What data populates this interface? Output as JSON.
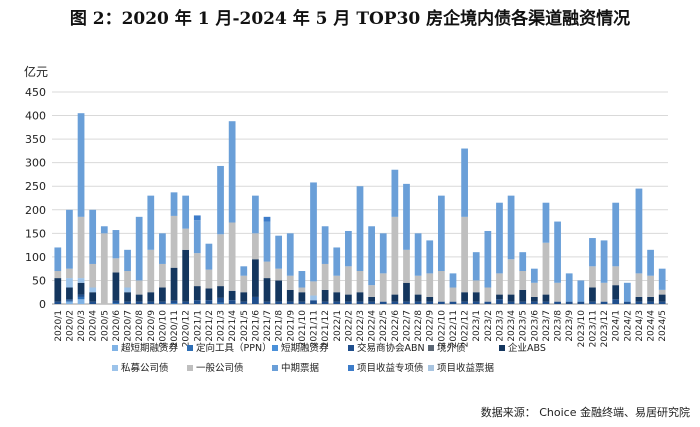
{
  "chart_data": {
    "type": "bar",
    "stacked": true,
    "title": "图 2：2020 年 1 月-2024 年 5 月 TOP30 房企境内债各渠道融资情况",
    "ylabel": "亿元",
    "ylim": [
      0,
      450
    ],
    "yticks": [
      0,
      50,
      100,
      150,
      200,
      250,
      300,
      350,
      400,
      450
    ],
    "grid": true,
    "legend_position": "bottom",
    "source": "数据来源： Choice 金融终端、易居研究院",
    "categories": [
      "2020/1",
      "2020/2",
      "2020/3",
      "2020/4",
      "2020/5",
      "2020/6",
      "2020/7",
      "2020/8",
      "2020/9",
      "2020/10",
      "2020/11",
      "2020/12",
      "2021/1",
      "2021/2",
      "2021/3",
      "2021/4",
      "2021/5",
      "2021/6",
      "2021/7",
      "2021/8",
      "2021/9",
      "2021/10",
      "2021/11",
      "2021/12",
      "2022/1",
      "2022/2",
      "2022/3",
      "2022/4",
      "2022/5",
      "2022/6",
      "2022/7",
      "2022/8",
      "2022/9",
      "2022/10",
      "2022/11",
      "2022/12",
      "2023/1",
      "2023/2",
      "2023/3",
      "2023/4",
      "2023/5",
      "2023/6",
      "2023/7",
      "2023/8",
      "2023/9",
      "2023/10",
      "2023/11",
      "2023/12",
      "2024/1",
      "2024/2",
      "2024/3",
      "2024/4",
      "2024/5"
    ],
    "series": [
      {
        "name": "超短期融资券",
        "color": "#7FB2E5",
        "values": [
          0,
          5,
          10,
          0,
          0,
          0,
          0,
          0,
          0,
          0,
          0,
          0,
          0,
          0,
          0,
          0,
          0,
          0,
          0,
          0,
          0,
          0,
          0,
          0,
          0,
          0,
          0,
          0,
          0,
          0,
          0,
          0,
          0,
          0,
          0,
          0,
          0,
          0,
          0,
          0,
          0,
          0,
          0,
          0,
          0,
          0,
          0,
          0,
          0,
          0,
          0,
          0,
          0
        ]
      },
      {
        "name": "定向工具（PPN）",
        "color": "#2E6EB5",
        "values": [
          0,
          2,
          5,
          0,
          0,
          2,
          0,
          0,
          0,
          0,
          2,
          0,
          0,
          0,
          3,
          0,
          0,
          0,
          0,
          0,
          0,
          0,
          0,
          0,
          0,
          0,
          0,
          0,
          0,
          0,
          0,
          0,
          0,
          0,
          0,
          0,
          0,
          0,
          0,
          0,
          0,
          0,
          0,
          0,
          0,
          0,
          0,
          0,
          0,
          0,
          0,
          0,
          0
        ]
      },
      {
        "name": "短期融资券",
        "color": "#4A90D9",
        "values": [
          0,
          0,
          0,
          0,
          0,
          0,
          0,
          0,
          0,
          0,
          0,
          0,
          0,
          0,
          0,
          0,
          0,
          0,
          0,
          0,
          0,
          0,
          0,
          0,
          0,
          0,
          0,
          0,
          0,
          0,
          0,
          0,
          0,
          0,
          0,
          0,
          0,
          0,
          0,
          0,
          0,
          0,
          0,
          0,
          0,
          0,
          0,
          0,
          0,
          0,
          0,
          0,
          0
        ]
      },
      {
        "name": "交易商协会ABN",
        "color": "#1F4E8C",
        "values": [
          5,
          3,
          5,
          5,
          0,
          5,
          5,
          5,
          5,
          5,
          5,
          5,
          8,
          8,
          10,
          8,
          5,
          15,
          5,
          5,
          5,
          5,
          8,
          5,
          5,
          5,
          5,
          5,
          5,
          5,
          5,
          5,
          5,
          5,
          5,
          5,
          5,
          5,
          10,
          5,
          5,
          5,
          5,
          5,
          5,
          5,
          5,
          5,
          10,
          5,
          5,
          5,
          5
        ]
      },
      {
        "name": "境外债",
        "color": "#5A6573",
        "values": [
          0,
          0,
          0,
          0,
          0,
          0,
          0,
          0,
          0,
          0,
          0,
          0,
          0,
          0,
          0,
          0,
          0,
          0,
          0,
          0,
          0,
          0,
          0,
          0,
          0,
          0,
          0,
          0,
          0,
          0,
          0,
          0,
          0,
          0,
          0,
          0,
          0,
          0,
          0,
          0,
          0,
          0,
          0,
          0,
          0,
          0,
          0,
          0,
          0,
          0,
          0,
          0,
          0
        ]
      },
      {
        "name": "企业ABS",
        "color": "#14365E",
        "values": [
          50,
          25,
          25,
          20,
          0,
          60,
          20,
          15,
          20,
          30,
          70,
          110,
          30,
          25,
          25,
          20,
          20,
          80,
          50,
          45,
          25,
          20,
          0,
          25,
          20,
          15,
          20,
          10,
          0,
          15,
          40,
          15,
          10,
          0,
          0,
          20,
          20,
          0,
          10,
          15,
          25,
          10,
          15,
          0,
          0,
          0,
          30,
          0,
          30,
          0,
          10,
          10,
          15
        ]
      },
      {
        "name": "私募公司债",
        "color": "#9CC3EA",
        "values": [
          0,
          20,
          10,
          10,
          0,
          0,
          10,
          0,
          0,
          0,
          0,
          0,
          0,
          0,
          0,
          0,
          0,
          0,
          0,
          0,
          0,
          0,
          10,
          0,
          0,
          0,
          0,
          0,
          0,
          0,
          0,
          0,
          0,
          0,
          0,
          0,
          0,
          0,
          0,
          0,
          0,
          0,
          0,
          0,
          0,
          0,
          0,
          0,
          0,
          0,
          0,
          0,
          0
        ]
      },
      {
        "name": "一般公司债",
        "color": "#BFBFBF",
        "values": [
          15,
          20,
          130,
          50,
          150,
          30,
          35,
          30,
          90,
          50,
          110,
          45,
          70,
          40,
          110,
          145,
          35,
          55,
          35,
          25,
          30,
          10,
          30,
          55,
          35,
          60,
          45,
          25,
          60,
          165,
          70,
          40,
          50,
          65,
          30,
          160,
          25,
          30,
          45,
          75,
          40,
          30,
          110,
          40,
          0,
          0,
          45,
          40,
          40,
          0,
          50,
          45,
          10
        ]
      },
      {
        "name": "中期票据",
        "color": "#6A9FD8",
        "values": [
          50,
          125,
          220,
          115,
          15,
          60,
          45,
          135,
          115,
          65,
          50,
          70,
          70,
          55,
          145,
          215,
          20,
          80,
          85,
          70,
          90,
          35,
          210,
          80,
          60,
          75,
          180,
          125,
          85,
          100,
          140,
          90,
          70,
          160,
          30,
          145,
          60,
          120,
          150,
          135,
          40,
          30,
          85,
          130,
          60,
          45,
          60,
          90,
          135,
          40,
          180,
          55,
          45
        ]
      },
      {
        "name": "项目收益专项债",
        "color": "#3D7CC9",
        "values": [
          0,
          0,
          0,
          0,
          0,
          0,
          0,
          0,
          0,
          0,
          0,
          0,
          10,
          0,
          0,
          0,
          0,
          0,
          10,
          0,
          0,
          0,
          0,
          0,
          0,
          0,
          0,
          0,
          0,
          0,
          0,
          0,
          0,
          0,
          0,
          0,
          0,
          0,
          0,
          0,
          0,
          0,
          0,
          0,
          0,
          0,
          0,
          0,
          0,
          0,
          0,
          0,
          0
        ]
      },
      {
        "name": "项目收益票据",
        "color": "#A8C4E0",
        "values": [
          0,
          0,
          0,
          0,
          0,
          0,
          0,
          0,
          0,
          0,
          0,
          0,
          0,
          0,
          0,
          0,
          0,
          0,
          0,
          0,
          0,
          0,
          0,
          0,
          0,
          0,
          0,
          0,
          0,
          0,
          0,
          0,
          0,
          0,
          0,
          0,
          0,
          0,
          0,
          0,
          0,
          0,
          0,
          0,
          0,
          0,
          0,
          0,
          0,
          0,
          0,
          0,
          0
        ]
      }
    ]
  }
}
